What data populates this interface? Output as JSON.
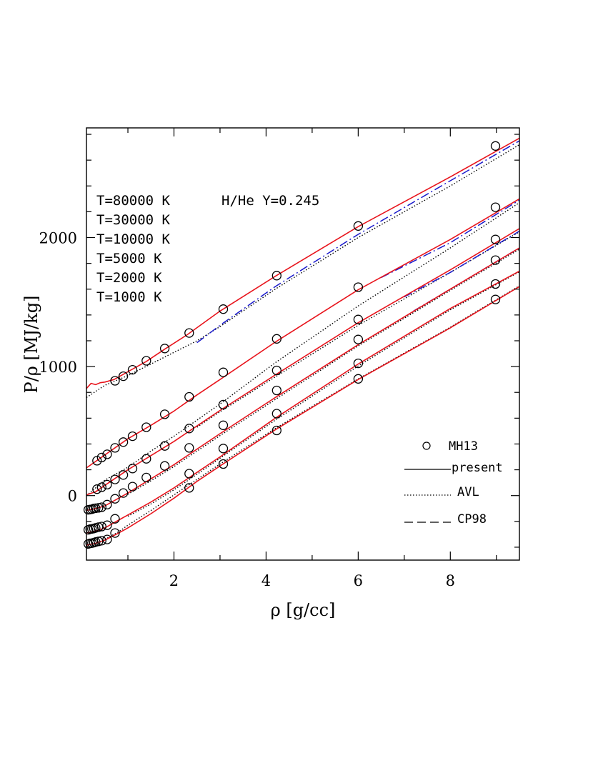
{
  "chart_data": {
    "type": "line",
    "title": "",
    "xlabel": "ρ [g/cc]",
    "ylabel": "P/ρ [MJ/kg]",
    "xlim": [
      0.1,
      9.5
    ],
    "ylim": [
      -500,
      2850
    ],
    "x_ticks": [
      2,
      4,
      6,
      8
    ],
    "y_ticks": [
      0,
      1000,
      2000
    ],
    "grid": false,
    "legend_position": "bottom-right",
    "legend": [
      {
        "label": "MH13",
        "style": "circle"
      },
      {
        "label": "present",
        "style": "solid"
      },
      {
        "label": "AVL",
        "style": "dotted"
      },
      {
        "label": "CP98",
        "style": "dashed"
      }
    ],
    "annotations": {
      "composition": "H/He Y=0.245",
      "temperatures": [
        "T=80000 K",
        "T=30000 K",
        "T=10000 K",
        "T=5000 K",
        "T=2000 K",
        "T=1000 K"
      ]
    },
    "colors": {
      "present": "#e8141c",
      "AVL": "#000000",
      "CP98": "#1a1acc",
      "MH13": "#000000"
    },
    "series": [
      {
        "name": "T=80000 K",
        "present": {
          "x": [
            0.1,
            0.2,
            0.3,
            0.4,
            0.5,
            0.7,
            1.0,
            1.4,
            1.8,
            2.3,
            3.0,
            4.2,
            6.0,
            8.0,
            9.5
          ],
          "y": [
            830,
            870,
            860,
            875,
            880,
            900,
            960,
            1040,
            1135,
            1250,
            1430,
            1700,
            2085,
            2470,
            2770
          ]
        },
        "AVL": {
          "x": [
            0.1,
            0.5,
            1.0,
            1.5,
            2.0,
            2.5,
            3.0,
            4.2,
            6.0,
            8.0,
            9.5
          ],
          "y": [
            760,
            855,
            930,
            1020,
            1110,
            1200,
            1310,
            1600,
            2000,
            2400,
            2720
          ]
        },
        "CP98": {
          "x": [
            2.5,
            3.0,
            4.2,
            6.0,
            8.0,
            9.5
          ],
          "y": [
            1185,
            1320,
            1620,
            2025,
            2440,
            2750
          ]
        },
        "MH13": {
          "x": [
            0.72,
            0.9,
            1.1,
            1.4,
            1.8,
            2.33,
            3.07,
            4.23,
            6.0,
            8.98
          ],
          "y": [
            890,
            925,
            975,
            1045,
            1140,
            1260,
            1445,
            1705,
            2090,
            2710
          ]
        }
      },
      {
        "name": "T=30000 K",
        "present": {
          "x": [
            0.1,
            0.5,
            1.0,
            1.5,
            2.0,
            2.5,
            3.0,
            4.2,
            6.0,
            8.0,
            9.5
          ],
          "y": [
            215,
            315,
            440,
            545,
            655,
            780,
            900,
            1190,
            1595,
            1985,
            2300
          ]
        },
        "AVL": {
          "x": [
            0.1,
            0.3,
            0.5,
            1.0,
            1.5,
            2.0,
            3.0,
            4.2,
            6.0,
            8.0,
            9.5
          ],
          "y": [
            0,
            60,
            120,
            220,
            345,
            460,
            710,
            1030,
            1470,
            1920,
            2270
          ]
        },
        "CP98": {
          "x": [
            6.5,
            8.0,
            9.5
          ],
          "y": [
            1690,
            1960,
            2290
          ]
        },
        "MH13": {
          "x": [
            0.33,
            0.43,
            0.55,
            0.72,
            0.9,
            1.1,
            1.4,
            1.8,
            2.33,
            3.07,
            4.23,
            6.0,
            8.98
          ],
          "y": [
            270,
            295,
            320,
            370,
            415,
            460,
            530,
            630,
            765,
            955,
            1215,
            1615,
            2235
          ]
        }
      },
      {
        "name": "T=10000 K",
        "present": {
          "x": [
            0.1,
            0.3,
            0.5,
            1.0,
            1.5,
            2.0,
            2.5,
            3.0,
            4.2,
            6.0,
            8.0,
            9.5
          ],
          "y": [
            5,
            30,
            80,
            200,
            310,
            420,
            540,
            660,
            935,
            1340,
            1750,
            2070
          ]
        },
        "AVL": {
          "x": [
            2.5,
            3.0,
            4.2,
            6.0,
            8.0,
            9.5
          ],
          "y": [
            530,
            650,
            920,
            1320,
            1730,
            2045
          ]
        },
        "CP98": {
          "x": [
            7.0,
            8.0,
            9.5
          ],
          "y": [
            1540,
            1730,
            2050
          ]
        },
        "MH13": {
          "x": [
            0.33,
            0.43,
            0.55,
            0.72,
            0.9,
            1.1,
            1.4,
            1.8,
            2.33,
            3.07,
            4.23,
            6.0,
            8.98
          ],
          "y": [
            50,
            65,
            85,
            125,
            160,
            210,
            285,
            385,
            520,
            705,
            970,
            1365,
            1985
          ]
        }
      },
      {
        "name": "T=5000 K",
        "present": {
          "x": [
            0.1,
            0.3,
            0.5,
            0.8,
            1.0,
            1.5,
            2.0,
            2.5,
            3.0,
            4.2,
            6.0,
            8.0,
            9.5
          ],
          "y": [
            -115,
            -100,
            -80,
            -20,
            20,
            130,
            240,
            360,
            480,
            760,
            1170,
            1600,
            1920
          ]
        },
        "AVL": {
          "x": [
            1.0,
            1.5,
            2.0,
            2.5,
            3.0,
            4.2,
            6.0,
            8.0,
            9.5
          ],
          "y": [
            10,
            115,
            225,
            345,
            465,
            745,
            1160,
            1590,
            1910
          ]
        },
        "CP98": {
          "x": [
            7.2,
            8.0,
            9.5
          ],
          "y": [
            1430,
            1600,
            1920
          ]
        },
        "MH13": {
          "x": [
            0.14,
            0.18,
            0.22,
            0.26,
            0.3,
            0.36,
            0.43,
            0.55,
            0.72,
            0.9,
            1.1,
            1.4,
            1.8,
            2.33,
            3.07,
            4.23,
            6.0,
            8.98
          ],
          "y": [
            -110,
            -108,
            -105,
            -100,
            -98,
            -95,
            -90,
            -70,
            -25,
            20,
            70,
            140,
            230,
            370,
            545,
            815,
            1210,
            1825
          ]
        }
      },
      {
        "name": "T=2000 K",
        "present": {
          "x": [
            0.1,
            0.3,
            0.5,
            0.8,
            1.0,
            1.5,
            2.0,
            2.5,
            3.0,
            4.2,
            6.0,
            8.0,
            9.5
          ],
          "y": [
            -290,
            -275,
            -250,
            -190,
            -150,
            -50,
            60,
            180,
            300,
            600,
            1020,
            1450,
            1740
          ]
        },
        "AVL": {
          "x": [
            1.0,
            1.5,
            2.0,
            2.5,
            3.0,
            4.2,
            6.0,
            8.0,
            9.5
          ],
          "y": [
            -160,
            -65,
            45,
            165,
            290,
            585,
            1005,
            1440,
            1735
          ]
        },
        "MH13": {
          "x": [
            0.14,
            0.18,
            0.22,
            0.26,
            0.3,
            0.36,
            0.43,
            0.55,
            0.72,
            2.33,
            3.07,
            4.23,
            6.0,
            8.98
          ],
          "y": [
            -265,
            -260,
            -258,
            -255,
            -250,
            -245,
            -240,
            -230,
            -180,
            170,
            365,
            635,
            1025,
            1640
          ]
        }
      },
      {
        "name": "T=1000 K",
        "present": {
          "x": [
            0.1,
            0.3,
            0.5,
            0.8,
            1.0,
            1.5,
            2.0,
            2.5,
            3.0,
            4.2,
            6.0,
            8.0,
            9.5
          ],
          "y": [
            -385,
            -370,
            -345,
            -290,
            -250,
            -140,
            -20,
            110,
            230,
            510,
            900,
            1300,
            1620
          ]
        },
        "AVL": {
          "x": [
            0.5,
            0.8,
            1.0,
            1.5,
            2.0,
            2.5,
            3.0,
            4.2,
            6.0,
            8.0,
            9.5
          ],
          "y": [
            -340,
            -280,
            -230,
            -115,
            5,
            125,
            245,
            520,
            905,
            1305,
            1625
          ]
        },
        "MH13": {
          "x": [
            0.14,
            0.18,
            0.22,
            0.26,
            0.3,
            0.36,
            0.43,
            0.55,
            0.72,
            2.33,
            3.07,
            4.23,
            6.0,
            8.98
          ],
          "y": [
            -375,
            -370,
            -368,
            -365,
            -360,
            -355,
            -350,
            -340,
            -290,
            60,
            245,
            505,
            905,
            1520
          ]
        }
      }
    ]
  }
}
